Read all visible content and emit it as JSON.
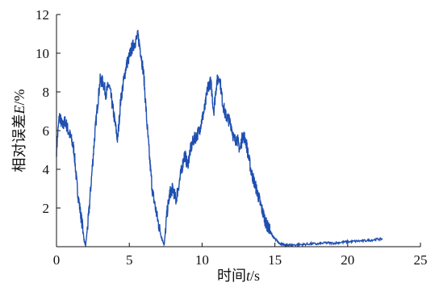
{
  "chart_data": {
    "type": "line",
    "title": "",
    "xlabel_prefix": "时间",
    "xlabel_var": "t",
    "xlabel_suffix": "/s",
    "ylabel_prefix": "相对误差",
    "ylabel_var": "E",
    "ylabel_suffix": "/%",
    "xlim": [
      0,
      25
    ],
    "ylim": [
      0,
      12
    ],
    "xticks": [
      "0",
      "5",
      "10",
      "15",
      "20",
      "25"
    ],
    "yticks": [
      "2",
      "4",
      "6",
      "8",
      "10",
      "12"
    ],
    "grid": false,
    "line_color": "#1f4fb0",
    "series": [
      {
        "x": [
          0,
          0.2,
          0.4,
          0.6,
          0.8,
          1.0,
          1.2,
          1.4,
          1.6,
          1.8,
          1.9,
          2.0,
          2.2,
          2.4,
          2.6,
          2.8,
          3.0,
          3.2,
          3.4,
          3.6,
          3.8,
          4.0,
          4.2,
          4.4,
          4.6,
          4.8,
          5.0,
          5.2,
          5.4,
          5.6,
          5.8,
          6.0,
          6.2,
          6.4,
          6.6,
          6.8,
          7.0,
          7.2,
          7.4,
          7.6,
          7.8,
          8.0,
          8.2,
          8.4,
          8.6,
          8.8,
          9.0,
          9.2,
          9.4,
          9.6,
          9.8,
          10.0,
          10.2,
          10.4,
          10.6,
          10.8,
          11.0,
          11.2,
          11.4,
          11.6,
          11.8,
          12.0,
          12.2,
          12.4,
          12.6,
          12.8,
          13.0,
          13.2,
          13.4,
          13.6,
          13.8,
          14.0,
          14.2,
          14.4,
          14.6,
          14.8,
          15.0,
          15.2,
          15.4,
          15.6,
          15.8,
          16.0,
          16.5,
          17.0,
          17.5,
          18.0,
          18.5,
          19.0,
          19.5,
          20.0,
          20.5,
          21.0,
          21.5,
          22.0,
          22.4
        ],
        "y": [
          5.0,
          6.8,
          6.2,
          6.5,
          6.0,
          5.6,
          5.0,
          3.2,
          2.0,
          1.0,
          0.3,
          0.05,
          1.5,
          3.5,
          5.5,
          7.2,
          8.6,
          8.5,
          7.9,
          8.4,
          7.5,
          6.5,
          5.5,
          7.5,
          8.5,
          9.4,
          9.8,
          10.3,
          10.6,
          10.9,
          10.0,
          8.8,
          6.5,
          4.5,
          2.8,
          2.0,
          1.2,
          0.5,
          0.1,
          1.8,
          2.8,
          3.0,
          2.4,
          3.2,
          4.0,
          4.8,
          4.2,
          5.0,
          5.5,
          5.7,
          6.0,
          6.6,
          7.2,
          8.3,
          8.5,
          7.0,
          8.5,
          8.8,
          7.5,
          6.8,
          6.6,
          6.3,
          5.5,
          5.6,
          5.0,
          5.8,
          5.5,
          4.6,
          3.8,
          3.3,
          2.8,
          2.2,
          1.7,
          1.2,
          0.9,
          0.6,
          0.4,
          0.25,
          0.15,
          0.1,
          0.08,
          0.08,
          0.1,
          0.12,
          0.15,
          0.14,
          0.2,
          0.18,
          0.22,
          0.25,
          0.28,
          0.3,
          0.33,
          0.38,
          0.4
        ]
      }
    ]
  }
}
